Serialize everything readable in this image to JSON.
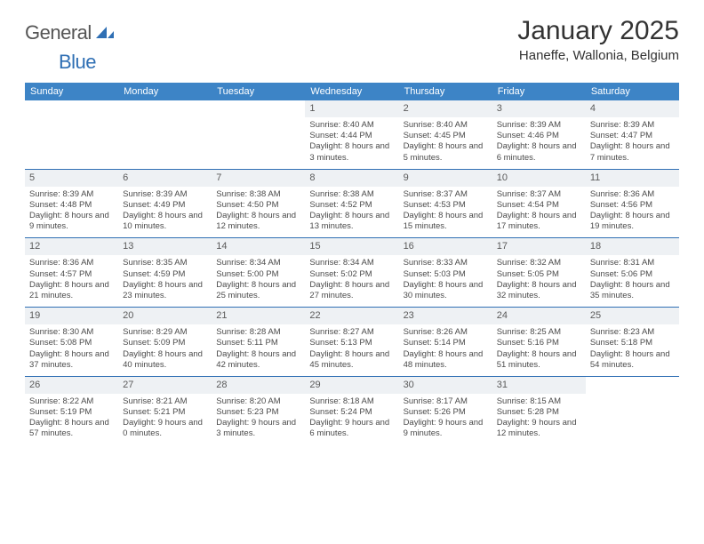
{
  "brand": {
    "word1": "General",
    "word2": "Blue",
    "accent_color": "#2f6fb4",
    "text_color": "#555555"
  },
  "header": {
    "title": "January 2025",
    "location": "Haneffe, Wallonia, Belgium",
    "title_fontsize": 30,
    "location_fontsize": 15
  },
  "calendar": {
    "header_bg": "#3d84c6",
    "header_text": "#ffffff",
    "divider_color": "#2f6fb4",
    "daynum_bg": "#eef1f4",
    "cell_font_size": 9.5,
    "columns": [
      "Sunday",
      "Monday",
      "Tuesday",
      "Wednesday",
      "Thursday",
      "Friday",
      "Saturday"
    ],
    "weeks": [
      [
        null,
        null,
        null,
        {
          "day": "1",
          "sunrise": "8:40 AM",
          "sunset": "4:44 PM",
          "daylight": "8 hours and 3 minutes."
        },
        {
          "day": "2",
          "sunrise": "8:40 AM",
          "sunset": "4:45 PM",
          "daylight": "8 hours and 5 minutes."
        },
        {
          "day": "3",
          "sunrise": "8:39 AM",
          "sunset": "4:46 PM",
          "daylight": "8 hours and 6 minutes."
        },
        {
          "day": "4",
          "sunrise": "8:39 AM",
          "sunset": "4:47 PM",
          "daylight": "8 hours and 7 minutes."
        }
      ],
      [
        {
          "day": "5",
          "sunrise": "8:39 AM",
          "sunset": "4:48 PM",
          "daylight": "8 hours and 9 minutes."
        },
        {
          "day": "6",
          "sunrise": "8:39 AM",
          "sunset": "4:49 PM",
          "daylight": "8 hours and 10 minutes."
        },
        {
          "day": "7",
          "sunrise": "8:38 AM",
          "sunset": "4:50 PM",
          "daylight": "8 hours and 12 minutes."
        },
        {
          "day": "8",
          "sunrise": "8:38 AM",
          "sunset": "4:52 PM",
          "daylight": "8 hours and 13 minutes."
        },
        {
          "day": "9",
          "sunrise": "8:37 AM",
          "sunset": "4:53 PM",
          "daylight": "8 hours and 15 minutes."
        },
        {
          "day": "10",
          "sunrise": "8:37 AM",
          "sunset": "4:54 PM",
          "daylight": "8 hours and 17 minutes."
        },
        {
          "day": "11",
          "sunrise": "8:36 AM",
          "sunset": "4:56 PM",
          "daylight": "8 hours and 19 minutes."
        }
      ],
      [
        {
          "day": "12",
          "sunrise": "8:36 AM",
          "sunset": "4:57 PM",
          "daylight": "8 hours and 21 minutes."
        },
        {
          "day": "13",
          "sunrise": "8:35 AM",
          "sunset": "4:59 PM",
          "daylight": "8 hours and 23 minutes."
        },
        {
          "day": "14",
          "sunrise": "8:34 AM",
          "sunset": "5:00 PM",
          "daylight": "8 hours and 25 minutes."
        },
        {
          "day": "15",
          "sunrise": "8:34 AM",
          "sunset": "5:02 PM",
          "daylight": "8 hours and 27 minutes."
        },
        {
          "day": "16",
          "sunrise": "8:33 AM",
          "sunset": "5:03 PM",
          "daylight": "8 hours and 30 minutes."
        },
        {
          "day": "17",
          "sunrise": "8:32 AM",
          "sunset": "5:05 PM",
          "daylight": "8 hours and 32 minutes."
        },
        {
          "day": "18",
          "sunrise": "8:31 AM",
          "sunset": "5:06 PM",
          "daylight": "8 hours and 35 minutes."
        }
      ],
      [
        {
          "day": "19",
          "sunrise": "8:30 AM",
          "sunset": "5:08 PM",
          "daylight": "8 hours and 37 minutes."
        },
        {
          "day": "20",
          "sunrise": "8:29 AM",
          "sunset": "5:09 PM",
          "daylight": "8 hours and 40 minutes."
        },
        {
          "day": "21",
          "sunrise": "8:28 AM",
          "sunset": "5:11 PM",
          "daylight": "8 hours and 42 minutes."
        },
        {
          "day": "22",
          "sunrise": "8:27 AM",
          "sunset": "5:13 PM",
          "daylight": "8 hours and 45 minutes."
        },
        {
          "day": "23",
          "sunrise": "8:26 AM",
          "sunset": "5:14 PM",
          "daylight": "8 hours and 48 minutes."
        },
        {
          "day": "24",
          "sunrise": "8:25 AM",
          "sunset": "5:16 PM",
          "daylight": "8 hours and 51 minutes."
        },
        {
          "day": "25",
          "sunrise": "8:23 AM",
          "sunset": "5:18 PM",
          "daylight": "8 hours and 54 minutes."
        }
      ],
      [
        {
          "day": "26",
          "sunrise": "8:22 AM",
          "sunset": "5:19 PM",
          "daylight": "8 hours and 57 minutes."
        },
        {
          "day": "27",
          "sunrise": "8:21 AM",
          "sunset": "5:21 PM",
          "daylight": "9 hours and 0 minutes."
        },
        {
          "day": "28",
          "sunrise": "8:20 AM",
          "sunset": "5:23 PM",
          "daylight": "9 hours and 3 minutes."
        },
        {
          "day": "29",
          "sunrise": "8:18 AM",
          "sunset": "5:24 PM",
          "daylight": "9 hours and 6 minutes."
        },
        {
          "day": "30",
          "sunrise": "8:17 AM",
          "sunset": "5:26 PM",
          "daylight": "9 hours and 9 minutes."
        },
        {
          "day": "31",
          "sunrise": "8:15 AM",
          "sunset": "5:28 PM",
          "daylight": "9 hours and 12 minutes."
        },
        null
      ]
    ],
    "labels": {
      "sunrise": "Sunrise:",
      "sunset": "Sunset:",
      "daylight": "Daylight:"
    }
  }
}
